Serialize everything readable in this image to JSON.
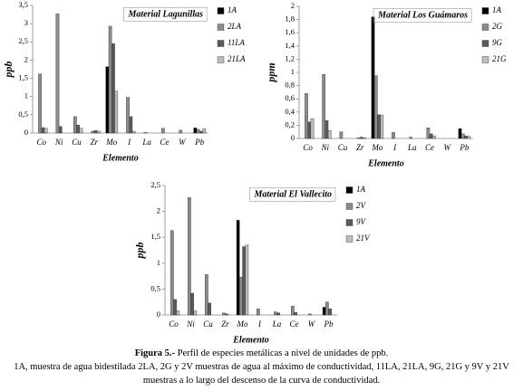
{
  "chart_data": [
    {
      "type": "bar",
      "title": "Material Lagunillas",
      "x_label": "Elemento",
      "y_label": "ppb",
      "categories": [
        "Co",
        "Ni",
        "Cu",
        "Zr",
        "Mo",
        "I",
        "La",
        "Ce",
        "W",
        "Pb"
      ],
      "ylim": [
        0,
        3.5
      ],
      "yticks": [
        0,
        {
          "value": 0.5,
          "label": "0,5"
        },
        1,
        {
          "value": 1.5,
          "label": "1,5"
        },
        2,
        {
          "value": 2.5,
          "label": "2,5"
        },
        3,
        {
          "value": 3.5,
          "label": "3,5"
        }
      ],
      "series": [
        {
          "name": "1A",
          "color": "#000000",
          "values": [
            0,
            0,
            0,
            0,
            1.82,
            0,
            0,
            0,
            0,
            0.14
          ]
        },
        {
          "name": "2LA",
          "color": "#8c8c8c",
          "values": [
            1.62,
            3.27,
            0.45,
            0.05,
            2.93,
            0.98,
            0.02,
            0.13,
            0.08,
            0.1
          ]
        },
        {
          "name": "11LA",
          "color": "#5a5a5a",
          "values": [
            0.15,
            0.18,
            0.22,
            0.07,
            2.45,
            0.45,
            0,
            0,
            0,
            0.05
          ]
        },
        {
          "name": "21LA",
          "color": "#bdbdbd",
          "values": [
            0.13,
            0,
            0.13,
            0.05,
            1.15,
            0.05,
            0,
            0,
            0,
            0.12
          ]
        }
      ]
    },
    {
      "type": "bar",
      "title": "Material Los Guámaros",
      "x_label": "Elemento",
      "y_label": "ppm",
      "categories": [
        "Co",
        "Ni",
        "Cu",
        "Zr",
        "Mo",
        "I",
        "La",
        "Ce",
        "W",
        "Pb"
      ],
      "ylim": [
        0,
        2
      ],
      "yticks": [
        0,
        {
          "value": 0.2,
          "label": "0,2"
        },
        {
          "value": 0.4,
          "label": "0,4"
        },
        {
          "value": 0.6,
          "label": "0,6"
        },
        {
          "value": 0.8,
          "label": "0,8"
        },
        1,
        {
          "value": 1.2,
          "label": "1,2"
        },
        {
          "value": 1.4,
          "label": "1,4"
        },
        {
          "value": 1.6,
          "label": "1,6"
        },
        {
          "value": 1.8,
          "label": "1,8"
        },
        2
      ],
      "series": [
        {
          "name": "1A",
          "color": "#000000",
          "values": [
            0,
            0,
            0,
            0,
            1.84,
            0,
            0,
            0,
            0,
            0.15
          ]
        },
        {
          "name": "2G",
          "color": "#8c8c8c",
          "values": [
            0.68,
            0.97,
            0.1,
            0.01,
            0.95,
            0.09,
            0.02,
            0.16,
            0,
            0.07
          ]
        },
        {
          "name": "9G",
          "color": "#5a5a5a",
          "values": [
            0.25,
            0.27,
            0,
            0.02,
            0.36,
            0,
            0,
            0.07,
            0,
            0.04
          ]
        },
        {
          "name": "21G",
          "color": "#bdbdbd",
          "values": [
            0.3,
            0.12,
            0,
            0.01,
            0.35,
            0,
            0,
            0.04,
            0,
            0.03
          ]
        }
      ]
    },
    {
      "type": "bar",
      "title": "Material El Vallecito",
      "x_label": "Elemento",
      "y_label": "ppb",
      "categories": [
        "Co",
        "Ni",
        "Cu",
        "Zr",
        "Mo",
        "I",
        "La",
        "Ce",
        "W",
        "Pb"
      ],
      "ylim": [
        0,
        2.5
      ],
      "yticks": [
        0,
        {
          "value": 0.5,
          "label": "0,5"
        },
        1,
        {
          "value": 1.5,
          "label": "1,5"
        },
        2,
        {
          "value": 2.5,
          "label": "2,5"
        }
      ],
      "series": [
        {
          "name": "1A",
          "color": "#000000",
          "values": [
            0,
            0,
            0,
            0,
            1.83,
            0,
            0,
            0,
            0,
            0.15
          ]
        },
        {
          "name": "2V",
          "color": "#8c8c8c",
          "values": [
            1.63,
            2.27,
            0.78,
            0.04,
            0.73,
            0.12,
            0.06,
            0.17,
            0.02,
            0.25
          ]
        },
        {
          "name": "9V",
          "color": "#5a5a5a",
          "values": [
            0.3,
            0.42,
            0.23,
            0.02,
            1.32,
            0,
            0.04,
            0.05,
            0,
            0.12
          ]
        },
        {
          "name": "21V",
          "color": "#bdbdbd",
          "values": [
            0.08,
            0.08,
            0,
            0,
            1.35,
            0,
            0,
            0,
            0,
            0
          ]
        }
      ]
    }
  ],
  "caption": {
    "label": "Figura 5.-",
    "title": "Perfil de especies metálicas a nivel de unidades de ppb.",
    "lines": [
      "1A, muestra de agua bidestilada 2LA, 2G y 2V muestras de agua al máximo de conductividad, 11LA, 21LA, 9G, 21G y 9V y 21V",
      "muestras a lo largo del descenso de la curva de conductividad."
    ]
  }
}
